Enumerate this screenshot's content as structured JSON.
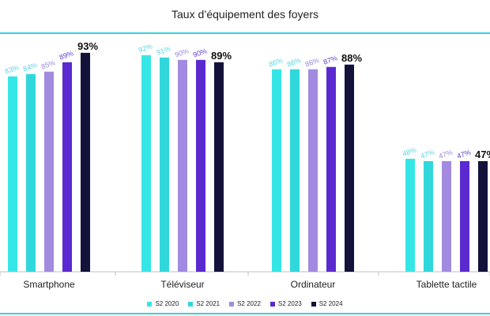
{
  "chart_data": {
    "type": "bar",
    "title": "Taux d’équipement des foyers",
    "xlabel": "",
    "ylabel": "",
    "ylim": [
      0,
      100
    ],
    "grid": false,
    "legend_position": "bottom",
    "categories": [
      "Smartphone",
      "Téléviseur",
      "Ordinateur",
      "Tablette tactile"
    ],
    "series": [
      {
        "name": "S2 2020",
        "values": [
          83,
          92,
          86,
          48
        ],
        "labels": [
          "83%",
          "92%",
          "86%",
          "48%"
        ]
      },
      {
        "name": "S2 2021",
        "values": [
          84,
          91,
          86,
          47
        ],
        "labels": [
          "84%",
          "91%",
          "86%",
          "47%"
        ]
      },
      {
        "name": "S2 2022",
        "values": [
          85,
          90,
          86,
          47
        ],
        "labels": [
          "85%",
          "90%",
          "86%",
          "47%"
        ]
      },
      {
        "name": "S2 2023",
        "values": [
          89,
          90,
          87,
          47
        ],
        "labels": [
          "89%",
          "90%",
          "87%",
          "47%"
        ]
      },
      {
        "name": "S2 2024",
        "values": [
          93,
          89,
          88,
          47
        ],
        "labels": [
          "93%",
          "89%",
          "88%",
          "47%"
        ]
      }
    ],
    "colors": [
      "#36e6e6",
      "#30d8dc",
      "#a28ae0",
      "#5a2ad0",
      "#12123a"
    ],
    "label_colors": [
      "#5ad6e2",
      "#5ad6e2",
      "#9a86dc",
      "#5e3ed0",
      "#111111"
    ]
  }
}
